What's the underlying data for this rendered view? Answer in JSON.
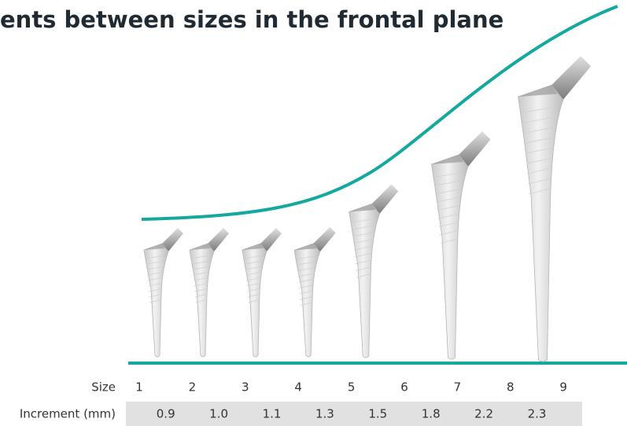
{
  "title": "ents between sizes in the frontal plane",
  "size_label": "Size",
  "sizes": [
    "1",
    "2",
    "3",
    "4",
    "5",
    "6",
    "7",
    "8",
    "9"
  ],
  "increment_label": "Increment (mm)",
  "increments": [
    "0.9",
    "1.0",
    "1.1",
    "1.3",
    "1.5",
    "1.8",
    "2.2",
    "2.3"
  ]
}
